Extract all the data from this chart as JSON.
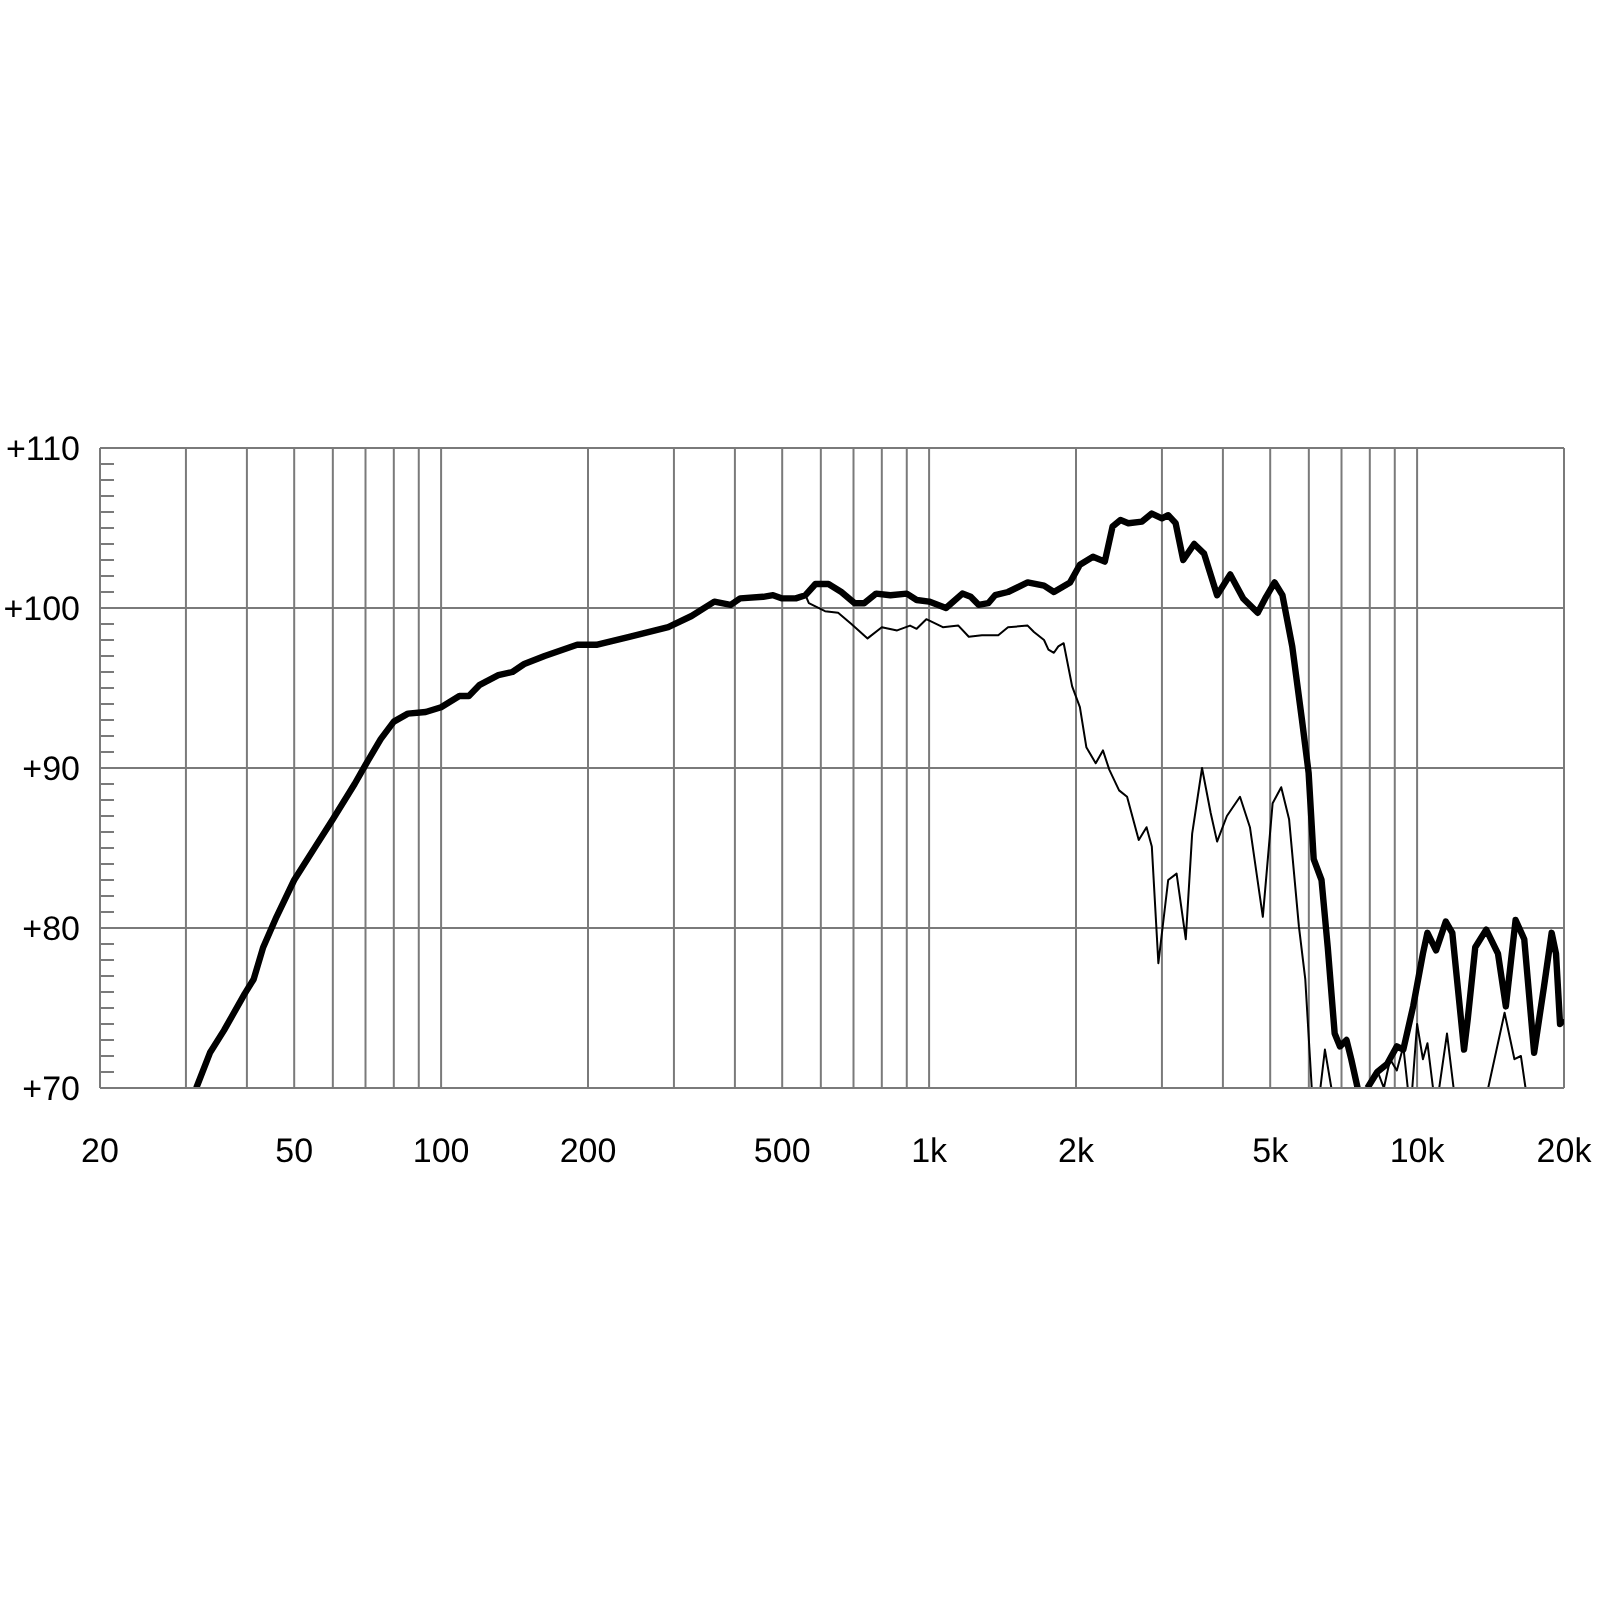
{
  "chart_data": {
    "type": "line",
    "log": "x",
    "grid": true,
    "xlim": [
      20,
      20000
    ],
    "xticks": [
      20,
      {
        "value": 30,
        "label": null
      },
      {
        "value": 40,
        "label": null
      },
      50,
      {
        "value": 60,
        "label": null
      },
      {
        "value": 70,
        "label": null
      },
      {
        "value": 80,
        "label": null
      },
      {
        "value": 90,
        "label": null
      },
      100,
      200,
      {
        "value": 300,
        "label": null
      },
      {
        "value": 400,
        "label": null
      },
      500,
      {
        "value": 600,
        "label": null
      },
      {
        "value": 700,
        "label": null
      },
      {
        "value": 800,
        "label": null
      },
      {
        "value": 900,
        "label": null
      },
      {
        "value": 1000,
        "label": "1k"
      },
      {
        "value": 2000,
        "label": "2k"
      },
      {
        "value": 3000,
        "label": null
      },
      {
        "value": 4000,
        "label": null
      },
      {
        "value": 5000,
        "label": "5k"
      },
      {
        "value": 6000,
        "label": null
      },
      {
        "value": 7000,
        "label": null
      },
      {
        "value": 8000,
        "label": null
      },
      {
        "value": 9000,
        "label": null
      },
      {
        "value": 10000,
        "label": "10k"
      },
      {
        "value": 20000,
        "label": "20k"
      }
    ],
    "ylim": [
      70,
      110
    ],
    "yticks": [
      {
        "value": 70,
        "label": "+70"
      },
      {
        "value": 71,
        "label": null
      },
      {
        "value": 72,
        "label": null
      },
      {
        "value": 73,
        "label": null
      },
      {
        "value": 74,
        "label": null
      },
      {
        "value": 75,
        "label": null
      },
      {
        "value": 76,
        "label": null
      },
      {
        "value": 77,
        "label": null
      },
      {
        "value": 78,
        "label": null
      },
      {
        "value": 79,
        "label": null
      },
      {
        "value": 80,
        "label": "+80"
      },
      {
        "value": 81,
        "label": null
      },
      {
        "value": 82,
        "label": null
      },
      {
        "value": 83,
        "label": null
      },
      {
        "value": 84,
        "label": null
      },
      {
        "value": 85,
        "label": null
      },
      {
        "value": 86,
        "label": null
      },
      {
        "value": 87,
        "label": null
      },
      {
        "value": 88,
        "label": null
      },
      {
        "value": 89,
        "label": null
      },
      {
        "value": 90,
        "label": "+90"
      },
      {
        "value": 91,
        "label": null
      },
      {
        "value": 92,
        "label": null
      },
      {
        "value": 93,
        "label": null
      },
      {
        "value": 94,
        "label": null
      },
      {
        "value": 95,
        "label": null
      },
      {
        "value": 96,
        "label": null
      },
      {
        "value": 97,
        "label": null
      },
      {
        "value": 98,
        "label": null
      },
      {
        "value": 99,
        "label": null
      },
      {
        "value": 100,
        "label": "+100"
      },
      {
        "value": 101,
        "label": null
      },
      {
        "value": 102,
        "label": null
      },
      {
        "value": 103,
        "label": null
      },
      {
        "value": 104,
        "label": null
      },
      {
        "value": 105,
        "label": null
      },
      {
        "value": 106,
        "label": null
      },
      {
        "value": 107,
        "label": null
      },
      {
        "value": 108,
        "label": null
      },
      {
        "value": 109,
        "label": null
      },
      {
        "value": 110,
        "label": "+110"
      }
    ],
    "series": [
      {
        "color": "#000000",
        "x": [
          31.5,
          33.6,
          35.9,
          39.6,
          41.3,
          43.2,
          46,
          50,
          55.3,
          60,
          66.5,
          70,
          75.2,
          80,
          85.5,
          93,
          100,
          109,
          114,
          120,
          131,
          140,
          148,
          163,
          190,
          208,
          243,
          292,
          326,
          363,
          392,
          410,
          457,
          479,
          500,
          533,
          558,
          585,
          622,
          661,
          704,
          736,
          779,
          833,
          900,
          943,
          1000,
          1083,
          1170,
          1217,
          1263,
          1322,
          1365,
          1451,
          1592,
          1720,
          1802,
          1945,
          2037,
          2167,
          2291,
          2377,
          2467,
          2560,
          2731,
          2860,
          3000,
          3090,
          3200,
          3317,
          3493,
          3660,
          3892,
          4141,
          4402,
          4714,
          4905,
          5105,
          5297,
          5548,
          5809,
          5994,
          6139,
          6370,
          6560,
          6778,
          6950,
          7167,
          7330,
          7553,
          7700,
          7911,
          8285,
          8680,
          9088,
          9370,
          9815,
          10278,
          10500,
          10935,
          11450,
          11807,
          12480,
          12700,
          13158,
          13857,
          14647,
          15200,
          15580,
          15916,
          16580,
          17370,
          18190,
          18870,
          19260,
          19630,
          20000
        ],
        "values": [
          70,
          72.2,
          73.6,
          75.9,
          76.8,
          78.8,
          80.7,
          83,
          85.1,
          86.8,
          89,
          90.2,
          91.8,
          92.9,
          93.4,
          93.5,
          93.8,
          94.5,
          94.5,
          95.2,
          95.8,
          96,
          96.5,
          97,
          97.7,
          97.7,
          98.2,
          98.8,
          99.5,
          100.4,
          100.2,
          100.6,
          100.7,
          100.8,
          100.6,
          100.6,
          100.8,
          101.5,
          101.5,
          101,
          100.3,
          100.3,
          100.9,
          100.8,
          100.9,
          100.5,
          100.4,
          100,
          100.9,
          100.7,
          100.2,
          100.3,
          100.8,
          101,
          101.6,
          101.4,
          101,
          101.6,
          102.7,
          103.2,
          102.9,
          105.1,
          105.5,
          105.3,
          105.4,
          105.9,
          105.6,
          105.8,
          105.3,
          103,
          104,
          103.4,
          100.8,
          102.1,
          100.6,
          99.7,
          100.7,
          101.6,
          100.8,
          97.6,
          93,
          89.7,
          84.3,
          83,
          78.8,
          73.4,
          72.6,
          73,
          71.8,
          70,
          null,
          70,
          71,
          71.5,
          72.6,
          72.4,
          75.1,
          78.4,
          79.7,
          78.6,
          80.4,
          79.7,
          72.4,
          74.3,
          78.8,
          79.9,
          78.4,
          75.1,
          78,
          80.5,
          79.3,
          72.2,
          76.3,
          79.7,
          78.4,
          74,
          74.3
        ]
      },
      {
        "color": "#000000",
        "x": [
          558,
          567,
          612,
          651,
          693,
          748,
          800,
          860,
          914,
          943,
          987,
          1067,
          1148,
          1206,
          1283,
          1386,
          1451,
          1592,
          1640,
          1720,
          1756,
          1802,
          1840,
          1887,
          1964,
          2037,
          2100,
          2195,
          2271,
          2340,
          2451,
          2545,
          2689,
          2790,
          2860,
          2950,
          3090,
          3215,
          3357,
          3460,
          3625,
          3775,
          3892,
          4076,
          4336,
          4544,
          4829,
          5058,
          5267,
          5466,
          5725,
          5900,
          6083,
          6200,
          6336,
          6473,
          6673,
          7300,
          7911,
          8285,
          8550,
          8806,
          9088,
          9370,
          9570,
          9680,
          9775,
          10000,
          10278,
          10500,
          10780,
          10950,
          11100,
          11515,
          11880,
          13000,
          13985,
          15110,
          15830,
          16320,
          16680
        ],
        "values": [
          100.8,
          100.3,
          99.8,
          99.7,
          99,
          98.1,
          98.8,
          98.6,
          98.9,
          98.7,
          99.3,
          98.8,
          98.9,
          98.2,
          98.3,
          98.3,
          98.8,
          98.9,
          98.5,
          98,
          97.4,
          97.2,
          97.6,
          97.8,
          95.1,
          93.8,
          91.3,
          90.3,
          91.1,
          89.9,
          88.6,
          88.2,
          85.5,
          86.3,
          85.1,
          77.8,
          83,
          83.4,
          79.3,
          85.9,
          90,
          87.2,
          85.4,
          87,
          88.2,
          86.3,
          80.7,
          87.8,
          88.8,
          86.8,
          80.1,
          76.8,
          70,
          null,
          70,
          72.4,
          70,
          null,
          70,
          71.1,
          70,
          71.8,
          71.1,
          72.6,
          70,
          null,
          70,
          74,
          71.8,
          72.8,
          70,
          null,
          70,
          73.4,
          70,
          null,
          70,
          74.7,
          71.8,
          72,
          70
        ]
      }
    ]
  }
}
